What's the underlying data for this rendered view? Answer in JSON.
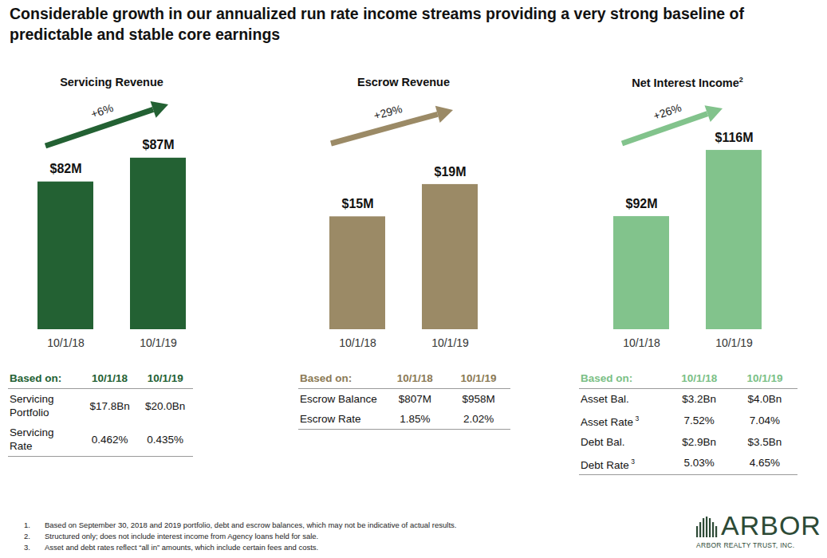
{
  "title": "Considerable growth in our annualized run rate income streams providing a very strong baseline of predictable and stable core earnings",
  "chart_data": [
    {
      "type": "bar",
      "title": "Servicing Revenue",
      "annotation": "+6%",
      "categories": [
        "10/1/18",
        "10/1/19"
      ],
      "values": [
        82,
        87
      ],
      "value_labels": [
        "$82M",
        "$87M"
      ],
      "color": "#236133",
      "ylim": [
        51,
        95
      ],
      "data_labels": true,
      "tick_labels": "x",
      "table": {
        "header": [
          "Based on:",
          "10/1/18",
          "10/1/19"
        ],
        "rows": [
          {
            "label": "Servicing Portfolio",
            "values": [
              "$17.8Bn",
              "$20.0Bn"
            ]
          },
          {
            "label": "Servicing Rate",
            "values": [
              "0.462%",
              "0.435%"
            ]
          }
        ]
      }
    },
    {
      "type": "bar",
      "title": "Escrow Revenue",
      "annotation": "+29%",
      "categories": [
        "10/1/18",
        "10/1/19"
      ],
      "values": [
        15,
        19
      ],
      "value_labels": [
        "$15M",
        "$19M"
      ],
      "color": "#9b8a66",
      "ylim": [
        1,
        27
      ],
      "data_labels": true,
      "tick_labels": "x",
      "table": {
        "header": [
          "Based on:",
          "10/1/18",
          "10/1/19"
        ],
        "rows": [
          {
            "label": "Escrow Balance",
            "values": [
              "$807M",
              "$958M"
            ]
          },
          {
            "label": "Escrow Rate",
            "values": [
              "1.85%",
              "2.02%"
            ]
          }
        ]
      }
    },
    {
      "type": "bar",
      "title": "Net Interest Income",
      "title_note": "2",
      "annotation": "+26%",
      "categories": [
        "10/1/18",
        "10/1/19"
      ],
      "values": [
        92,
        116
      ],
      "value_labels": [
        "$92M",
        "$116M"
      ],
      "color": "#82c38c",
      "ylim": [
        51,
        127
      ],
      "data_labels": true,
      "tick_labels": "x",
      "table": {
        "header": [
          "Based on:",
          "10/1/18",
          "10/1/19"
        ],
        "rows": [
          {
            "label": "Asset Bal.",
            "values": [
              "$3.2Bn",
              "$4.0Bn"
            ]
          },
          {
            "label": "Asset Rate",
            "note": "3",
            "values": [
              "7.52%",
              "7.04%"
            ]
          },
          {
            "label": "Debt Bal.",
            "values": [
              "$2.9Bn",
              "$3.5Bn"
            ]
          },
          {
            "label": "Debt Rate",
            "note": "3",
            "values": [
              "5.03%",
              "4.65%"
            ]
          }
        ]
      }
    }
  ],
  "footnotes": [
    {
      "number": "1.",
      "text": "Based on September 30, 2018 and 2019 portfolio, debt and escrow balances, which may not be indicative of actual results."
    },
    {
      "number": "2.",
      "text": "Structured only; does not include interest income from Agency loans held for sale."
    },
    {
      "number": "3.",
      "text": "Asset and debt rates reflect “all in” amounts, which include certain fees and costs."
    }
  ],
  "logo": {
    "name": "ARBOR",
    "subtitle": "ARBOR REALTY TRUST, INC."
  }
}
